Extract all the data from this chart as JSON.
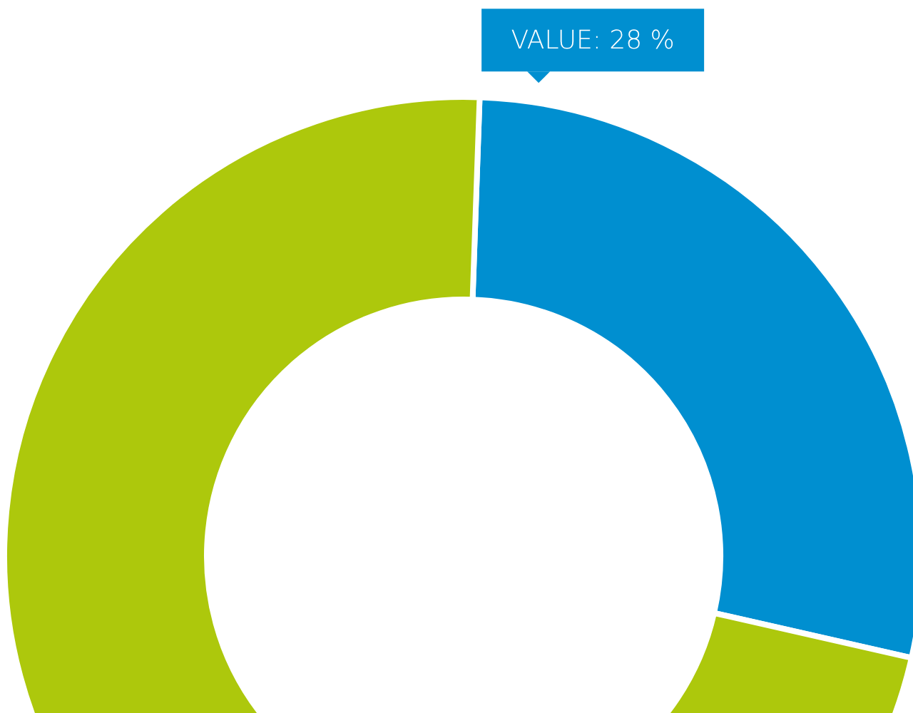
{
  "chart_data": {
    "type": "donut",
    "categories": [
      null,
      null
    ],
    "values": [
      28,
      72
    ],
    "colors": [
      "#008fd0",
      "#adc80c"
    ],
    "value_labels": [
      "VALUE: 28 %",
      null
    ]
  }
}
